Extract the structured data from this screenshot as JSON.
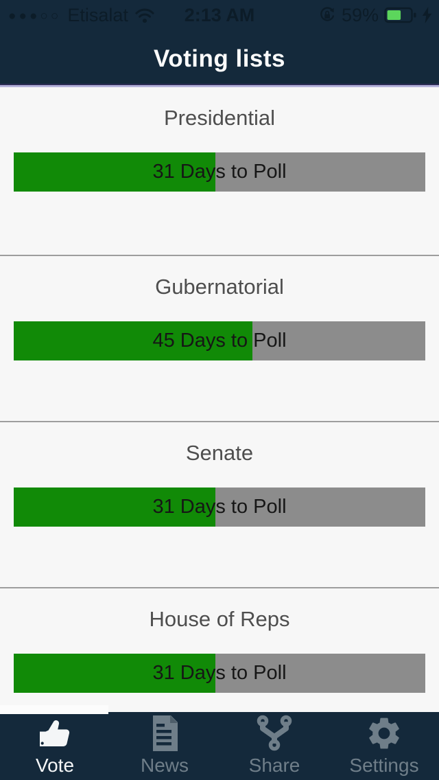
{
  "status_bar": {
    "signal_display": "●●●○○",
    "signal_dots_filled": 3,
    "signal_dots_total": 5,
    "carrier": "Etisalat",
    "time": "2:13 AM",
    "battery_percent": "59%",
    "icons": [
      "wifi-icon",
      "orientation-lock-icon",
      "battery-icon",
      "charging-bolt-icon"
    ]
  },
  "header": {
    "title": "Voting lists"
  },
  "voting_lists": [
    {
      "name": "Presidential",
      "progress_label": "31 Days to Poll",
      "progress_percent": 49
    },
    {
      "name": "Gubernatorial",
      "progress_label": "45 Days to Poll",
      "progress_percent": 58
    },
    {
      "name": "Senate",
      "progress_label": "31 Days to Poll",
      "progress_percent": 49
    },
    {
      "name": "House of Reps",
      "progress_label": "31 Days to Poll",
      "progress_percent": 49
    }
  ],
  "tab_bar": {
    "tabs": [
      {
        "label": "Vote",
        "icon": "thumbs-up-icon",
        "active": true
      },
      {
        "label": "News",
        "icon": "news-document-icon",
        "active": false
      },
      {
        "label": "Share",
        "icon": "share-icon",
        "active": false
      },
      {
        "label": "Settings",
        "icon": "settings-gear-icon",
        "active": false
      }
    ]
  },
  "colors": {
    "navy_bar": "#14293B",
    "accent_green": "#118A07",
    "progress_gray": "#8C8C8C",
    "divider_gray": "#9D9D9D",
    "lavender_line": "#B5B2DA",
    "indigo_line": "#2D2C55",
    "battery_green": "#5CD65C",
    "inactive_tab": "#6F7E89",
    "card_bg": "#F7F7F7"
  }
}
